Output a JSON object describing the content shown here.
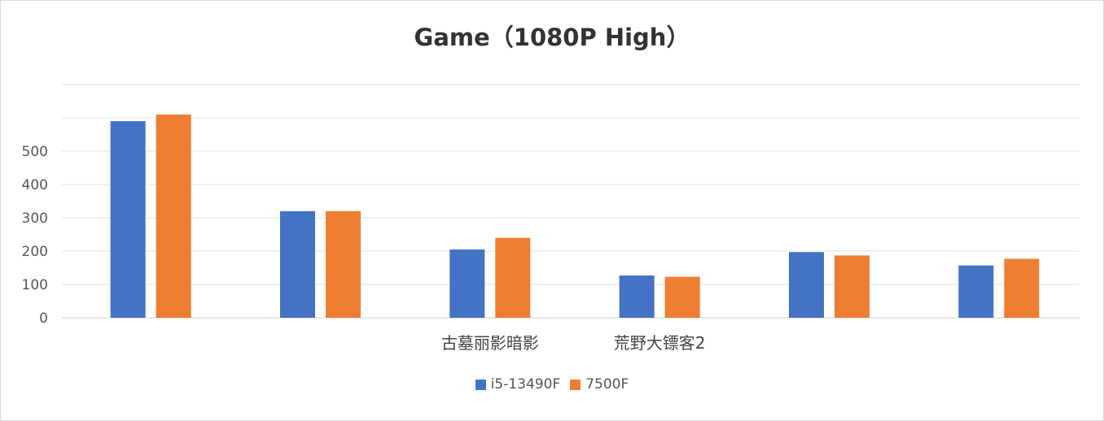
{
  "chart_data": {
    "type": "bar",
    "title": "Game（1080P High）",
    "categories": [
      "",
      "",
      "古墓丽影暗影",
      "荒野大镖客2",
      "",
      ""
    ],
    "series": [
      {
        "name": "i5-13490F",
        "color": "#4472C4",
        "values": [
          590,
          320,
          205,
          127,
          197,
          157
        ]
      },
      {
        "name": "7500F",
        "color": "#ED7D31",
        "values": [
          610,
          320,
          240,
          123,
          187,
          177
        ]
      }
    ],
    "yticks": [
      0,
      100,
      200,
      300,
      400,
      500
    ],
    "ylim": [
      0,
      700
    ],
    "xlabel": "",
    "ylabel": "",
    "grid": true,
    "legend_position": "bottom"
  }
}
